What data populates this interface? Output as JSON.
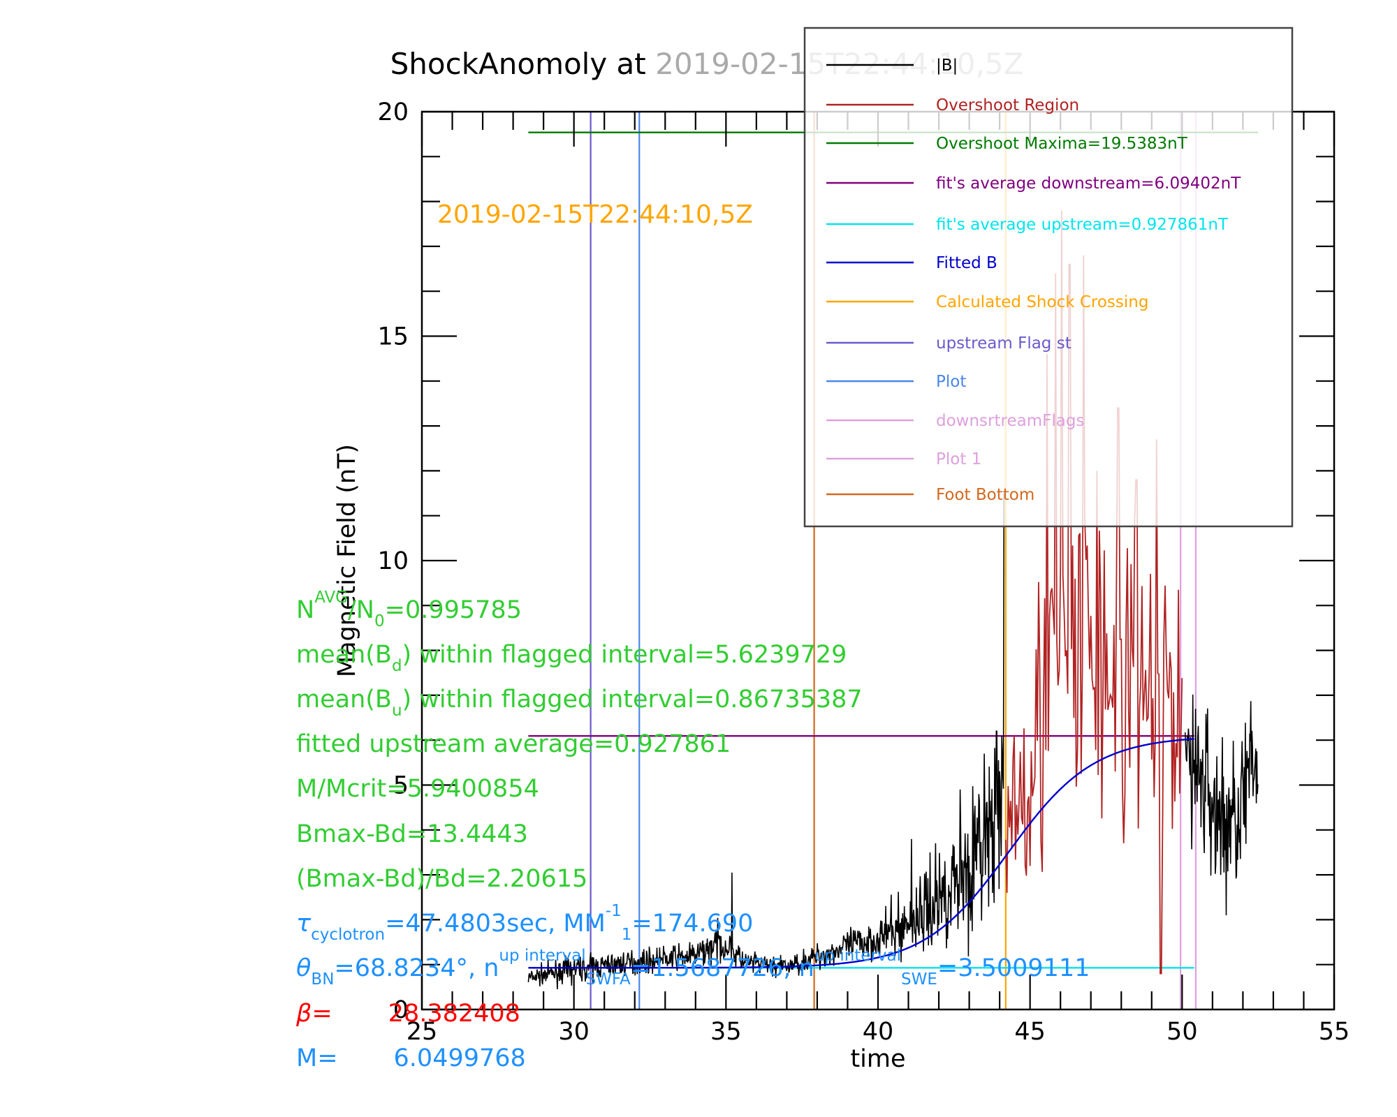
{
  "chart_data": {
    "type": "line",
    "title_main": "ShockAnomoly at ",
    "title_time": "2019-02-15T22:44:10,5Z",
    "xlabel": "time",
    "ylabel": "Magnetic Field (nT)",
    "xlim": [
      25,
      55
    ],
    "ylim": [
      0,
      20
    ],
    "x_ticks": [
      25,
      30,
      35,
      40,
      45,
      50,
      55
    ],
    "y_ticks": [
      0,
      5,
      10,
      15,
      20
    ],
    "inner_label": "2019-02-15T22:44:10,5Z",
    "colors": {
      "b": "#000000",
      "overshoot": "#b22222",
      "maxima": "#007a00",
      "downstream": "#800080",
      "upstream": "#00e5ee",
      "fitted": "#0000cd",
      "crossing": "#ffa500",
      "upflag": "#6a5acd",
      "plot": "#4a86e8",
      "downflag": "#dda0dd",
      "plot1": "#dda0dd",
      "foot": "#d2691e",
      "stats_green": "#32cd32",
      "stats_blue": "#1e90ff",
      "stats_red": "#ff0000",
      "time_orange": "#ffa500"
    },
    "legend": {
      "position": "top-right",
      "entries": [
        {
          "key": "b",
          "label": "|B|"
        },
        {
          "key": "overshoot",
          "label": "Overshoot Region"
        },
        {
          "key": "maxima",
          "label": "Overshoot Maxima=19.5383nT"
        },
        {
          "key": "downstream",
          "label": "fit's average downstream=6.09402nT"
        },
        {
          "key": "upstream",
          "label": "fit's average upstream=0.927861nT"
        },
        {
          "key": "fitted",
          "label": "Fitted B"
        },
        {
          "key": "crossing",
          "label": "Calculated Shock Crossing"
        },
        {
          "key": "upflag",
          "label": "upstream Flag st"
        },
        {
          "key": "plot",
          "label": "Plot"
        },
        {
          "key": "downflag",
          "label": "downsrtreamFlags"
        },
        {
          "key": "plot1",
          "label": "Plot 1"
        },
        {
          "key": "foot",
          "label": "Foot Bottom"
        }
      ]
    },
    "hlines": [
      {
        "key": "maxima",
        "y": 19.5383,
        "x": [
          28.5,
          52.5
        ]
      },
      {
        "key": "downstream",
        "y": 6.09402,
        "x": [
          28.5,
          50.4
        ]
      },
      {
        "key": "upstream",
        "y": 0.927861,
        "x": [
          28.5,
          50.4
        ]
      }
    ],
    "vlines": [
      {
        "key": "upflag",
        "x": 30.55
      },
      {
        "key": "plot",
        "x": 32.15
      },
      {
        "key": "foot",
        "x": 37.9
      },
      {
        "key": "crossing",
        "x": 44.2
      },
      {
        "key": "downflag",
        "x": 49.95
      },
      {
        "key": "plot1",
        "x": 50.45
      }
    ],
    "fitted_b": {
      "down": 6.09402,
      "up": 0.927861,
      "center": 44.3,
      "width": 1.4,
      "x": [
        28.5,
        50.4
      ]
    },
    "b_series": {
      "segments": [
        {
          "x": [
            28.5,
            30.0,
            32.0,
            34.0,
            34.8,
            35.2,
            35.6,
            37.0,
            38.5,
            40.0,
            41.0,
            42.0,
            43.0,
            44.0,
            44.15
          ],
          "base": [
            0.7,
            0.9,
            1.05,
            1.2,
            1.5,
            1.3,
            1.05,
            0.95,
            1.3,
            1.6,
            1.9,
            2.5,
            3.2,
            4.2,
            4.6
          ],
          "noise": [
            0.18,
            0.28,
            0.25,
            0.28,
            0.4,
            0.35,
            0.25,
            0.2,
            0.3,
            0.45,
            0.7,
            1.1,
            1.4,
            1.9,
            2.2
          ]
        },
        {
          "x": [
            50.1,
            50.6,
            51.0,
            51.5,
            52.0,
            52.5
          ],
          "base": [
            5.8,
            5.2,
            4.6,
            4.0,
            4.8,
            5.5
          ],
          "noise": [
            1.5,
            1.7,
            1.8,
            1.7,
            1.6,
            1.4
          ]
        }
      ],
      "spikes": [
        [
          35.2,
          3.05
        ],
        [
          41.1,
          3.8
        ],
        [
          42.7,
          4.9
        ],
        [
          43.5,
          5.7
        ],
        [
          43.9,
          6.2
        ],
        [
          44.15,
          11.5
        ]
      ]
    },
    "overshoot_series": {
      "x": [
        44.2,
        45.0,
        46.0,
        47.0,
        48.0,
        49.0,
        50.0
      ],
      "base": [
        4.0,
        6.0,
        7.5,
        7.8,
        7.2,
        6.8,
        6.5
      ],
      "noise": [
        2.0,
        3.0,
        4.2,
        4.2,
        3.4,
        3.0,
        2.6
      ],
      "spikes": [
        [
          45.55,
          14.6
        ],
        [
          45.85,
          16.4
        ],
        [
          46.05,
          17.8
        ],
        [
          46.3,
          16.6
        ],
        [
          46.75,
          16.8
        ],
        [
          47.2,
          12.0
        ],
        [
          47.9,
          13.4
        ],
        [
          48.5,
          11.8
        ],
        [
          49.15,
          12.7
        ],
        [
          49.3,
          0.8
        ]
      ]
    },
    "stats": [
      {
        "color": "stats_green",
        "parts": [
          [
            "N",
            ""
          ],
          [
            "AVG",
            "sup"
          ],
          [
            "/N",
            ""
          ],
          [
            "0",
            "sub"
          ],
          [
            "=0.995785",
            ""
          ]
        ]
      },
      {
        "color": "stats_green",
        "parts": [
          [
            "mean(B",
            ""
          ],
          [
            "d",
            "sub"
          ],
          [
            ") within flagged interval=5.6239729",
            ""
          ]
        ]
      },
      {
        "color": "stats_green",
        "parts": [
          [
            "mean(B",
            ""
          ],
          [
            "u",
            "sub"
          ],
          [
            ") within flagged interval=0.86735387",
            ""
          ]
        ]
      },
      {
        "color": "stats_green",
        "parts": [
          [
            "fitted upstream average=0.927861",
            ""
          ]
        ]
      },
      {
        "color": "stats_green",
        "parts": [
          [
            "M/Mcrit=5.9400854",
            ""
          ]
        ]
      },
      {
        "color": "stats_green",
        "parts": [
          [
            "Bmax-Bd=13.4443",
            ""
          ]
        ]
      },
      {
        "color": "stats_green",
        "parts": [
          [
            "(Bmax-Bd)/Bd=2.20615",
            ""
          ]
        ]
      },
      {
        "color": "stats_blue",
        "parts": [
          [
            "τ",
            "italic"
          ],
          [
            "cyclotron",
            "sub"
          ],
          [
            "=47.4803sec, MM",
            ""
          ],
          [
            "-1",
            "sup"
          ],
          [
            "1",
            "sub"
          ],
          [
            "=174.690",
            ""
          ]
        ]
      },
      {
        "color": "stats_blue",
        "parts": [
          [
            "θ",
            "italic"
          ],
          [
            "BN",
            "sub"
          ],
          [
            "=68.8234°, n",
            ""
          ],
          [
            "up interval",
            "sup"
          ],
          [
            "SWFA",
            "sub"
          ],
          [
            "=1.5687726, n",
            ""
          ],
          [
            "up interval",
            "sup"
          ],
          [
            "SWE",
            "sub"
          ],
          [
            "=3.5009111",
            ""
          ]
        ]
      },
      {
        "color": "stats_red",
        "parts": [
          [
            "β",
            "italic"
          ],
          [
            "=",
            ""
          ],
          [
            "28.382408",
            "gap"
          ]
        ]
      },
      {
        "color": "stats_blue",
        "parts": [
          [
            "M=",
            ""
          ],
          [
            "6.0499768",
            "gap"
          ]
        ]
      }
    ]
  }
}
